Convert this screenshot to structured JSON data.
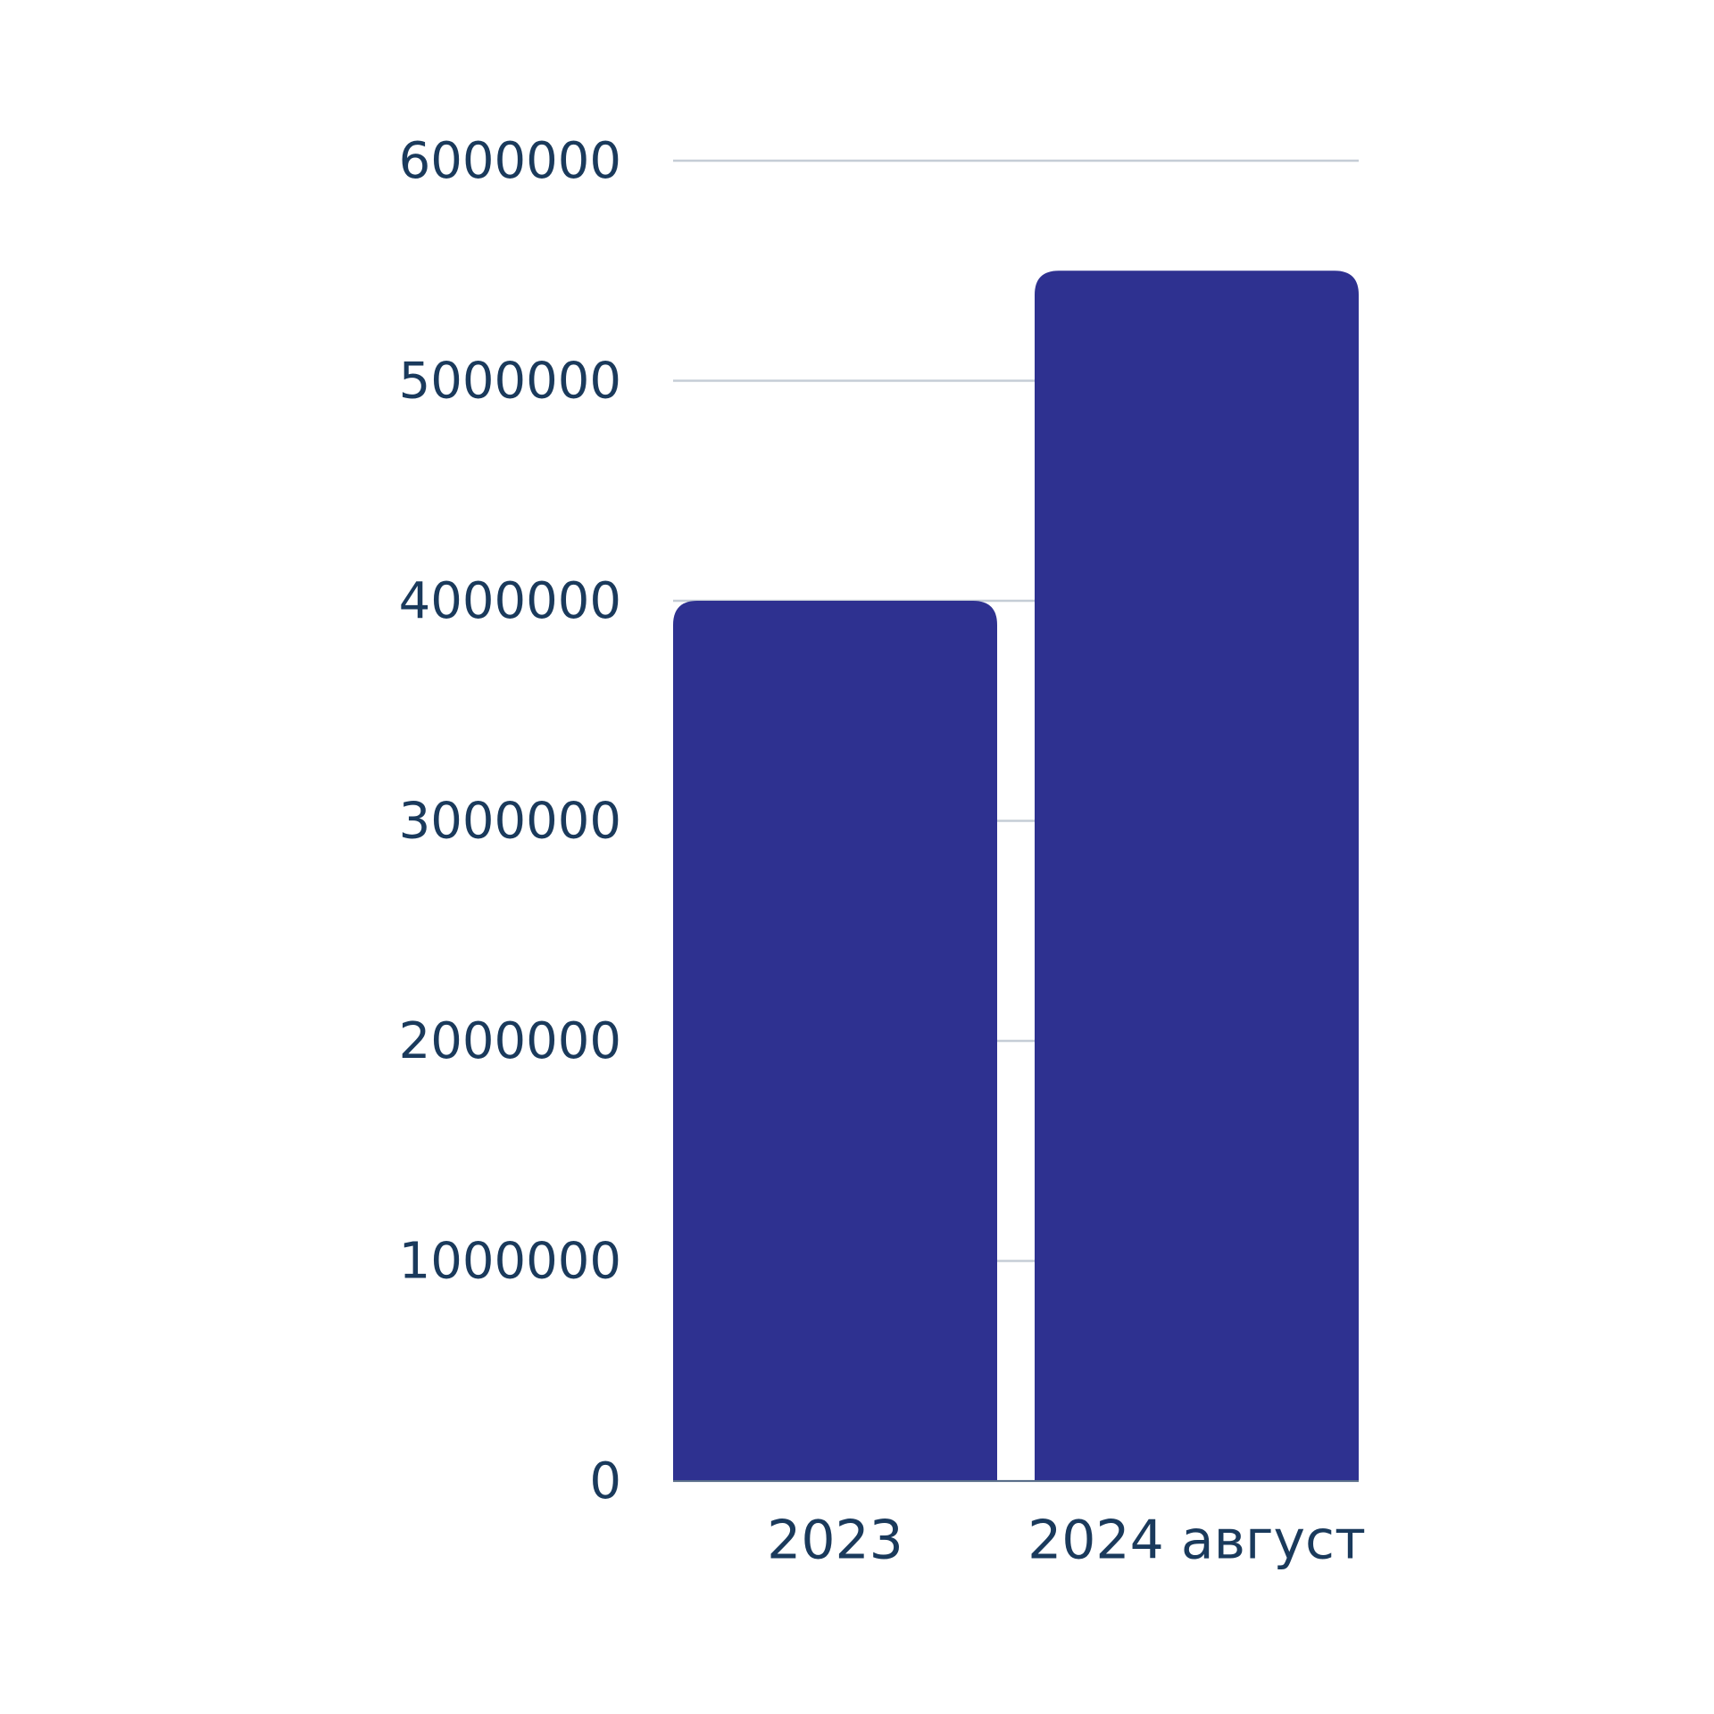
{
  "chart_data": {
    "type": "bar",
    "categories": [
      "2023",
      "2024 август"
    ],
    "values": [
      4000000,
      5500000
    ],
    "color": "#2e3190",
    "ylim": [
      0,
      6000000
    ],
    "yticks": [
      0,
      1000000,
      2000000,
      3000000,
      4000000,
      5000000,
      6000000
    ],
    "grid": true
  }
}
